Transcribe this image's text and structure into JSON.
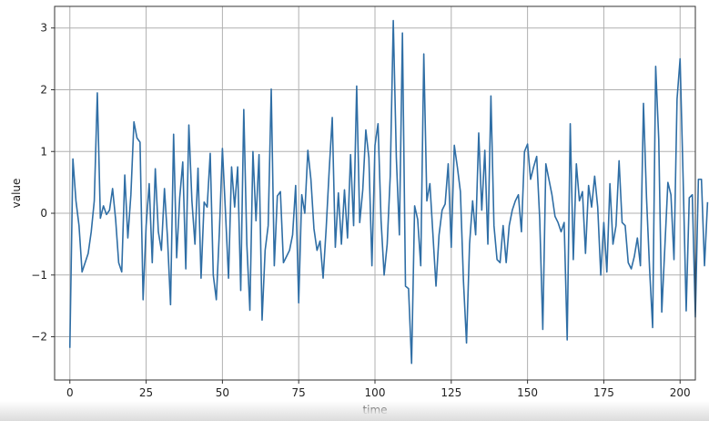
{
  "chart_data": {
    "type": "line",
    "title": "",
    "xlabel": "time",
    "ylabel": "value",
    "xlim": [
      -5,
      205
    ],
    "ylim": [
      -2.7,
      3.35
    ],
    "x_ticks": [
      0,
      25,
      50,
      75,
      100,
      125,
      150,
      175,
      200
    ],
    "x_tick_labels": [
      "0",
      "25",
      "50",
      "75",
      "100",
      "125",
      "150",
      "175",
      "200"
    ],
    "y_ticks": [
      -2,
      -1,
      0,
      1,
      2,
      3
    ],
    "y_tick_labels": [
      "−2",
      "−1",
      "0",
      "1",
      "2",
      "3"
    ],
    "grid": true,
    "line_color": "#2f6ea5",
    "series": [
      {
        "values": [
          -2.18,
          0.88,
          0.2,
          -0.2,
          -0.95,
          -0.8,
          -0.65,
          -0.3,
          0.2,
          1.95,
          -0.08,
          0.12,
          -0.02,
          0.05,
          0.4,
          -0.1,
          -0.8,
          -0.95,
          0.62,
          -0.4,
          0.3,
          1.48,
          1.22,
          1.15,
          -1.4,
          -0.2,
          0.48,
          -0.8,
          0.72,
          -0.3,
          -0.6,
          0.4,
          -0.4,
          -1.48,
          1.28,
          -0.72,
          0.25,
          0.83,
          -0.9,
          1.43,
          0.2,
          -0.5,
          0.73,
          -1.05,
          0.18,
          0.1,
          0.97,
          -1.0,
          -1.4,
          -0.3,
          1.05,
          0.02,
          -1.05,
          0.75,
          0.1,
          0.75,
          -1.25,
          1.68,
          -0.5,
          -1.57,
          1.0,
          -0.12,
          0.95,
          -1.73,
          -0.6,
          -0.2,
          2.01,
          -0.85,
          0.28,
          0.35,
          -0.8,
          -0.7,
          -0.6,
          -0.35,
          0.45,
          -1.45,
          0.3,
          0.0,
          1.02,
          0.55,
          -0.25,
          -0.6,
          -0.45,
          -1.05,
          -0.25,
          0.7,
          1.55,
          -0.55,
          0.33,
          -0.5,
          0.38,
          -0.4,
          0.95,
          -0.2,
          2.06,
          -0.15,
          0.38,
          1.35,
          0.9,
          -0.85,
          1.1,
          1.45,
          -0.12,
          -1.0,
          -0.5,
          0.6,
          3.12,
          0.9,
          -0.35,
          2.92,
          -1.18,
          -1.22,
          -2.43,
          0.12,
          -0.1,
          -0.85,
          2.58,
          0.2,
          0.48,
          -0.35,
          -1.18,
          -0.35,
          0.05,
          0.15,
          0.8,
          -0.55,
          1.1,
          0.75,
          0.35,
          -1.1,
          -2.1,
          -0.5,
          0.2,
          -0.35,
          1.3,
          0.05,
          1.02,
          -0.5,
          1.9,
          -0.2,
          -0.75,
          -0.8,
          -0.2,
          -0.8,
          -0.2,
          0.05,
          0.2,
          0.3,
          -0.3,
          1.0,
          1.12,
          0.55,
          0.75,
          0.92,
          -0.1,
          -1.88,
          0.8,
          0.55,
          0.3,
          -0.05,
          -0.15,
          -0.3,
          -0.15,
          -2.05,
          1.45,
          -0.75,
          0.8,
          0.2,
          0.35,
          -0.65,
          0.45,
          0.1,
          0.6,
          0.1,
          -1.0,
          -0.15,
          -0.95,
          0.48,
          -0.5,
          -0.2,
          0.85,
          -0.15,
          -0.2,
          -0.8,
          -0.9,
          -0.7,
          -0.4,
          -0.85,
          1.78,
          0.25,
          -0.9,
          -1.85,
          2.38,
          1.2,
          -1.6,
          -0.55,
          0.5,
          0.3,
          -0.75,
          1.85,
          2.5,
          0.55,
          -1.58,
          0.25,
          0.3,
          -1.68,
          0.55,
          0.55,
          -0.85,
          0.18
        ]
      }
    ]
  }
}
